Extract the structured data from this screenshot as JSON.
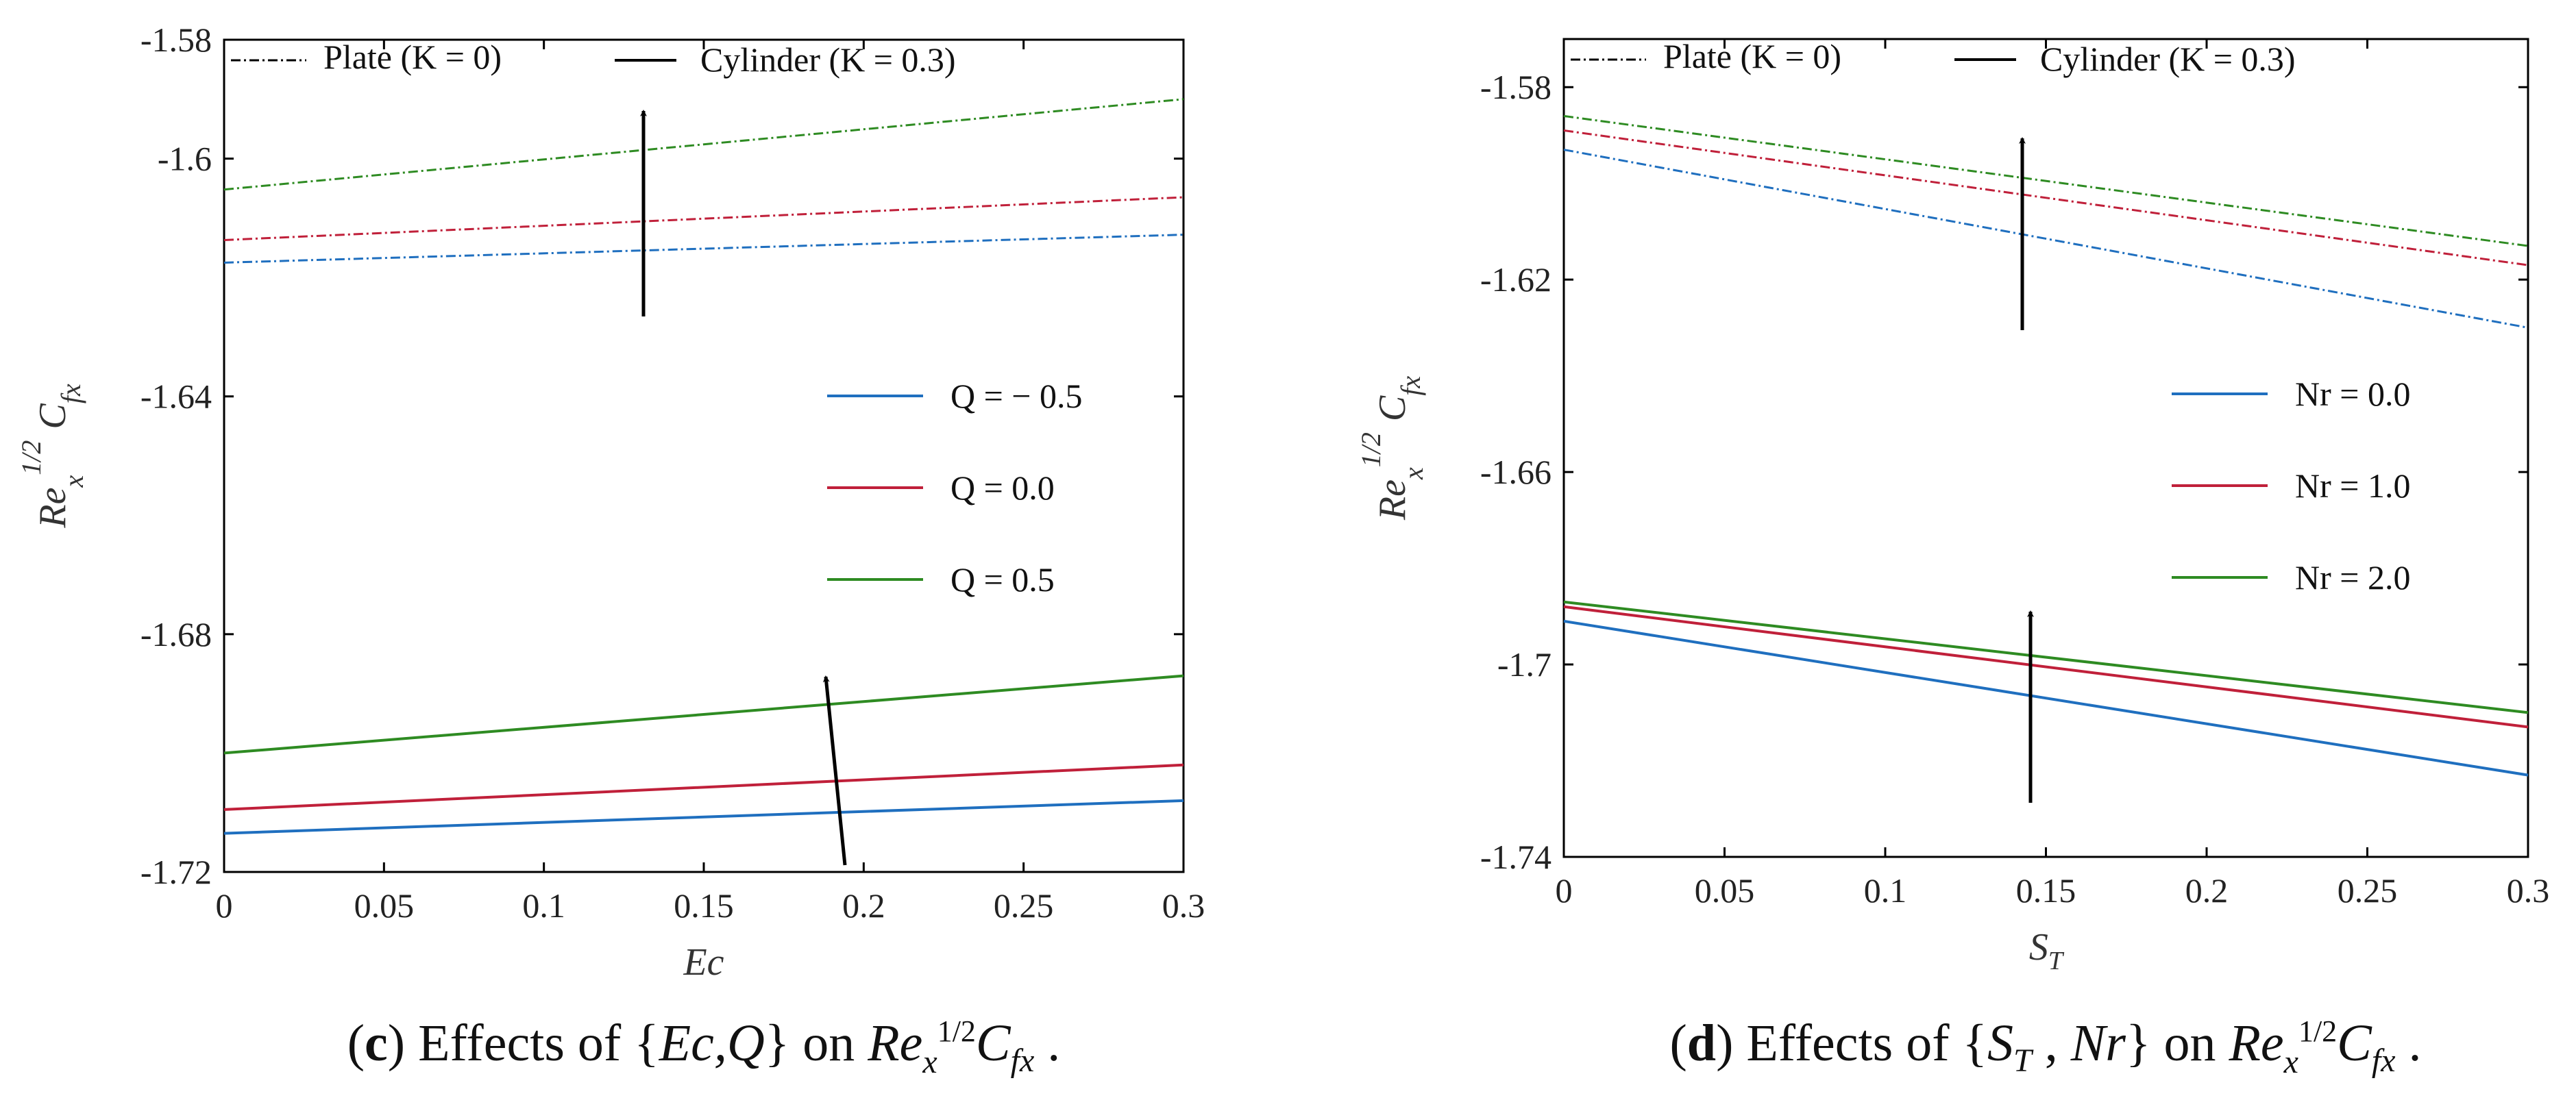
{
  "chart_data": [
    {
      "type": "line",
      "panel": "c",
      "caption": {
        "letter": "c",
        "text": "Effects of {Ec,Q} on Re_x^(1/2) C_fx."
      },
      "xlabel": "Ec",
      "ylabel": "Re_x^(1/2) C_fx",
      "xlim": [
        0,
        0.3
      ],
      "ylim": [
        -1.72,
        -1.58
      ],
      "xticks": [
        "0",
        "0.05",
        "0.1",
        "0.15",
        "0.2",
        "0.25",
        "0.3"
      ],
      "yticks": [
        "-1.58",
        "-1.6",
        "-1.64",
        "-1.68",
        "-1.72"
      ],
      "ytick_values": [
        -1.58,
        -1.6,
        -1.64,
        -1.68,
        -1.72
      ],
      "legend_geometry": {
        "plate": "Plate (K = 0)",
        "cylinder": "Cylinder (K = 0.3)"
      },
      "legend_series": [
        "Q = − 0.5",
        "Q = 0.0",
        "Q = 0.5"
      ],
      "colors": [
        "#1f6fbf",
        "#c0203a",
        "#2e8b22"
      ],
      "x": [
        0,
        0.3
      ],
      "series": [
        {
          "name": "Q = − 0.5",
          "geometry": "Plate",
          "values": [
            -1.6175,
            -1.6128
          ]
        },
        {
          "name": "Q = 0.0",
          "geometry": "Plate",
          "values": [
            -1.6137,
            -1.6065
          ]
        },
        {
          "name": "Q = 0.5",
          "geometry": "Plate",
          "values": [
            -1.6052,
            -1.59
          ]
        },
        {
          "name": "Q = − 0.5",
          "geometry": "Cylinder",
          "values": [
            -1.7135,
            -1.708
          ]
        },
        {
          "name": "Q = 0.0",
          "geometry": "Cylinder",
          "values": [
            -1.7095,
            -1.702
          ]
        },
        {
          "name": "Q = 0.5",
          "geometry": "Cylinder",
          "values": [
            -1.7,
            -1.687
          ]
        }
      ]
    },
    {
      "type": "line",
      "panel": "d",
      "caption": {
        "letter": "d",
        "text": "Effects of {S_T, Nr} on Re_x^(1/2) C_fx."
      },
      "xlabel": "S_T",
      "ylabel": "Re_x^(1/2) C_fx",
      "xlim": [
        0,
        0.3
      ],
      "ylim": [
        -1.74,
        -1.57
      ],
      "xticks": [
        "0",
        "0.05",
        "0.1",
        "0.15",
        "0.2",
        "0.25",
        "0.3"
      ],
      "yticks": [
        "-1.58",
        "-1.62",
        "-1.66",
        "-1.7",
        "-1.74"
      ],
      "ytick_values": [
        -1.58,
        -1.62,
        -1.66,
        -1.7,
        -1.74
      ],
      "legend_geometry": {
        "plate": "Plate (K = 0)",
        "cylinder": "Cylinder (K = 0.3)"
      },
      "legend_series": [
        "Nr = 0.0",
        "Nr = 1.0",
        "Nr = 2.0"
      ],
      "colors": [
        "#1f6fbf",
        "#c0203a",
        "#2e8b22"
      ],
      "x": [
        0,
        0.3
      ],
      "series": [
        {
          "name": "Nr = 0.0",
          "geometry": "Plate",
          "values": [
            -1.593,
            -1.63
          ]
        },
        {
          "name": "Nr = 1.0",
          "geometry": "Plate",
          "values": [
            -1.589,
            -1.617
          ]
        },
        {
          "name": "Nr = 2.0",
          "geometry": "Plate",
          "values": [
            -1.586,
            -1.613
          ]
        },
        {
          "name": "Nr = 0.0",
          "geometry": "Cylinder",
          "values": [
            -1.691,
            -1.723
          ]
        },
        {
          "name": "Nr = 1.0",
          "geometry": "Cylinder",
          "values": [
            -1.688,
            -1.713
          ]
        },
        {
          "name": "Nr = 2.0",
          "geometry": "Cylinder",
          "values": [
            -1.687,
            -1.71
          ]
        }
      ]
    }
  ]
}
